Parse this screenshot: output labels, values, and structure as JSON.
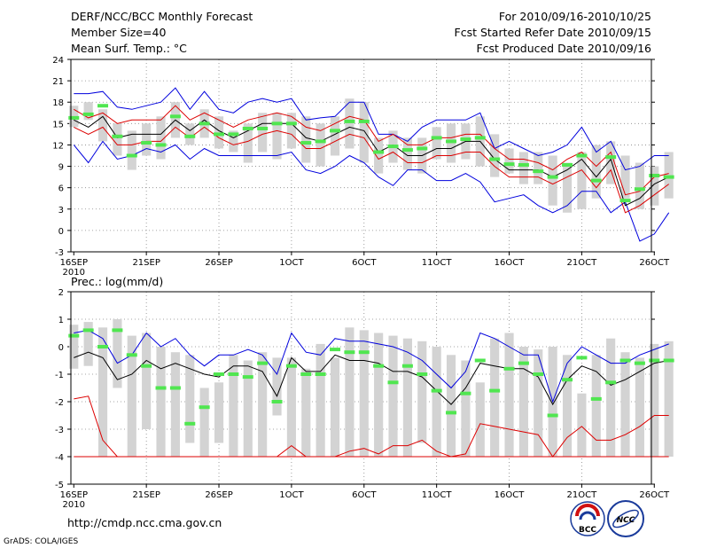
{
  "header": {
    "title": "DERF/NCC/BCC Monthly Forecast",
    "member_size": "Member Size=40",
    "variable": "Mean Surf. Temp.: °C",
    "period": "For 2010/09/16-2010/10/25",
    "refer_date": "Fcst Started Refer Date 2010/09/15",
    "produced_date": "Fcst Produced Date 2010/09/16"
  },
  "footer": {
    "url": "http://cmdp.ncc.cma.gov.cn",
    "credit": "GrADS: COLA/IGES",
    "logo_bcc": "BCC",
    "logo_ncc": "NCC"
  },
  "colors": {
    "box": "#d3d3d3",
    "median": "#50e650",
    "mean": "#000000",
    "outer": "#0000dd",
    "inner": "#dd0000",
    "grid": "#888888"
  },
  "chart_data": [
    {
      "type": "box-ensemble",
      "ylabel": "Mean Surf. Temp.: °C",
      "x_days": 40,
      "xticks": [
        {
          "day": 1,
          "label": "16SEP",
          "sub": "2010"
        },
        {
          "day": 6,
          "label": "21SEP"
        },
        {
          "day": 11,
          "label": "26SEP"
        },
        {
          "day": 16,
          "label": "1OCT"
        },
        {
          "day": 21,
          "label": "6OCT"
        },
        {
          "day": 26,
          "label": "11OCT"
        },
        {
          "day": 31,
          "label": "16OCT"
        },
        {
          "day": 36,
          "label": "21OCT"
        },
        {
          "day": 41,
          "label": "26OCT"
        }
      ],
      "ylim": [
        -3,
        24
      ],
      "yticks": [
        -3,
        0,
        3,
        6,
        9,
        12,
        15,
        18,
        21,
        24
      ],
      "box_low": [
        14.5,
        15.5,
        12.5,
        10.5,
        8.5,
        10.5,
        10.0,
        13.0,
        12.0,
        13.0,
        11.5,
        11.0,
        9.5,
        11.0,
        10.0,
        11.5,
        9.5,
        9.0,
        10.5,
        11.5,
        9.5,
        8.0,
        9.5,
        8.5,
        8.0,
        10.0,
        9.5,
        10.0,
        9.0,
        7.5,
        8.0,
        6.5,
        6.5,
        3.5,
        2.5,
        3.0,
        4.5,
        6.5,
        4.5,
        3.0,
        3.5,
        4.5
      ],
      "box_high": [
        17.5,
        18.0,
        17.0,
        15.0,
        14.0,
        15.0,
        16.0,
        18.0,
        15.0,
        17.0,
        16.0,
        14.0,
        15.0,
        16.5,
        16.5,
        16.5,
        16.0,
        15.0,
        16.0,
        18.5,
        18.0,
        13.0,
        14.0,
        13.0,
        13.0,
        14.5,
        15.0,
        15.0,
        16.0,
        13.5,
        11.5,
        11.0,
        11.0,
        10.5,
        9.5,
        11.0,
        12.0,
        12.5,
        10.5,
        9.5,
        9.0,
        11.0
      ],
      "median": [
        15.8,
        16.3,
        17.5,
        13.2,
        10.5,
        12.3,
        12.0,
        16.0,
        13.2,
        15.0,
        13.5,
        13.5,
        14.3,
        14.3,
        15.0,
        15.0,
        12.3,
        12.5,
        14.0,
        15.3,
        15.3,
        11.0,
        11.8,
        11.3,
        11.5,
        13.0,
        12.5,
        12.8,
        13.0,
        10.0,
        9.3,
        9.2,
        8.3,
        7.5,
        9.2,
        10.5,
        7.0,
        10.3,
        4.2,
        5.8,
        7.7,
        7.5
      ],
      "mean": [
        15.5,
        14.5,
        16.0,
        13.0,
        13.5,
        13.5,
        13.5,
        15.5,
        14.0,
        15.5,
        14.0,
        13.0,
        14.0,
        15.0,
        15.0,
        15.0,
        13.0,
        12.5,
        13.5,
        14.5,
        14.0,
        11.0,
        12.0,
        10.5,
        10.5,
        11.5,
        11.5,
        12.5,
        12.5,
        10.0,
        8.5,
        8.5,
        8.5,
        7.5,
        8.5,
        10.0,
        7.5,
        10.0,
        3.5,
        4.5,
        6.5,
        7.5
      ],
      "upper_outer": [
        19.2,
        19.2,
        19.5,
        17.3,
        17.0,
        17.5,
        18.0,
        20.0,
        17.0,
        19.5,
        17.0,
        16.5,
        18.0,
        18.5,
        18.0,
        18.5,
        15.5,
        15.8,
        16.0,
        18.0,
        18.0,
        13.5,
        13.5,
        12.5,
        14.5,
        15.5,
        15.5,
        15.5,
        16.5,
        11.5,
        12.5,
        11.5,
        10.5,
        11.0,
        12.0,
        14.5,
        11.0,
        12.5,
        8.5,
        9.0,
        10.5,
        10.5
      ],
      "upper_inner": [
        17.0,
        15.8,
        16.5,
        15.0,
        15.5,
        15.5,
        15.5,
        17.5,
        15.5,
        16.5,
        15.5,
        14.5,
        15.5,
        16.0,
        16.5,
        16.0,
        14.5,
        14.0,
        15.0,
        16.0,
        15.5,
        12.5,
        13.5,
        12.0,
        12.0,
        13.0,
        13.0,
        13.5,
        13.5,
        11.5,
        10.0,
        10.0,
        9.5,
        8.5,
        10.0,
        11.0,
        9.0,
        11.0,
        5.0,
        5.5,
        7.5,
        8.0
      ],
      "lower_inner": [
        14.5,
        13.5,
        14.5,
        12.0,
        12.0,
        12.5,
        12.5,
        14.5,
        13.0,
        14.5,
        13.0,
        12.0,
        12.5,
        13.5,
        14.0,
        13.5,
        11.5,
        11.5,
        12.5,
        13.5,
        13.0,
        10.0,
        11.0,
        9.5,
        9.5,
        10.5,
        10.5,
        11.0,
        11.0,
        9.0,
        7.5,
        7.5,
        7.5,
        6.5,
        7.5,
        8.5,
        6.0,
        8.5,
        2.5,
        3.5,
        5.0,
        6.5
      ],
      "lower_outer": [
        12.0,
        9.5,
        12.5,
        10.0,
        10.5,
        11.5,
        11.0,
        12.0,
        10.0,
        11.5,
        10.5,
        10.5,
        10.5,
        10.5,
        10.5,
        11.0,
        8.5,
        8.0,
        9.0,
        10.5,
        9.5,
        7.5,
        6.3,
        8.5,
        8.5,
        7.0,
        7.0,
        8.0,
        6.8,
        4.0,
        4.5,
        5.0,
        3.5,
        2.5,
        3.5,
        5.5,
        5.5,
        2.5,
        4.0,
        -1.5,
        -0.5,
        2.5
      ]
    },
    {
      "type": "box-ensemble",
      "ylabel": "Prec.: log(mm/d)",
      "x_days": 40,
      "xticks": [
        {
          "day": 1,
          "label": "16SEP",
          "sub": "2010"
        },
        {
          "day": 6,
          "label": "21SEP"
        },
        {
          "day": 11,
          "label": "26SEP"
        },
        {
          "day": 16,
          "label": "1OCT"
        },
        {
          "day": 21,
          "label": "6OCT"
        },
        {
          "day": 26,
          "label": "11OCT"
        },
        {
          "day": 31,
          "label": "16OCT"
        },
        {
          "day": 36,
          "label": "21OCT"
        },
        {
          "day": 41,
          "label": "26OCT"
        }
      ],
      "ylim": [
        -5,
        2
      ],
      "yticks": [
        -5,
        -4,
        -3,
        -2,
        -1,
        0,
        1,
        2
      ],
      "box_low": [
        -0.8,
        -0.7,
        -4.0,
        -1.5,
        -4.0,
        -3.0,
        -4.0,
        -4.0,
        -3.5,
        -4.0,
        -3.5,
        -4.0,
        -4.0,
        -4.0,
        -2.5,
        -4.0,
        -4.0,
        -4.0,
        -4.0,
        -4.0,
        -4.0,
        -4.0,
        -4.0,
        -4.0,
        -3.5,
        -4.0,
        -4.0,
        -4.0,
        -4.0,
        -4.0,
        -4.0,
        -4.0,
        -4.0,
        -4.0,
        -4.0,
        -4.0,
        -4.0,
        -4.0,
        -4.0,
        -4.0,
        -4.0,
        -4.0
      ],
      "box_high": [
        0.8,
        0.9,
        0.7,
        1.0,
        0.4,
        0.5,
        0.0,
        -0.2,
        -0.3,
        -1.5,
        -1.3,
        -0.3,
        -0.5,
        -0.2,
        -0.4,
        -0.4,
        -0.8,
        0.1,
        -0.4,
        0.7,
        0.6,
        0.5,
        0.4,
        0.3,
        0.2,
        0.0,
        -0.3,
        -0.5,
        -1.3,
        0.3,
        0.5,
        0.0,
        -0.1,
        0.0,
        -0.3,
        -1.7,
        -0.3,
        0.3,
        -0.2,
        -0.4,
        0.1,
        0.2
      ],
      "median": [
        0.4,
        0.6,
        0.0,
        0.6,
        -0.3,
        -0.7,
        -1.5,
        -1.5,
        -2.8,
        -2.2,
        -1.0,
        -1.0,
        -1.1,
        -0.6,
        -2.0,
        -0.7,
        -1.0,
        -1.0,
        -0.1,
        -0.2,
        -0.2,
        -0.7,
        -1.3,
        -0.7,
        -1.0,
        -1.6,
        -2.4,
        -1.7,
        -0.5,
        -1.6,
        -0.8,
        -0.6,
        -1.0,
        -2.5,
        -1.2,
        -0.4,
        -1.9,
        -1.3,
        -0.5,
        -0.6,
        -0.5,
        -0.5
      ],
      "mean": [
        -0.4,
        -0.2,
        -0.4,
        -1.2,
        -1.0,
        -0.5,
        -0.8,
        -0.6,
        -0.8,
        -1.0,
        -1.1,
        -0.7,
        -0.7,
        -0.9,
        -1.8,
        -0.4,
        -0.9,
        -0.9,
        -0.3,
        -0.5,
        -0.5,
        -0.6,
        -0.9,
        -0.9,
        -1.1,
        -1.6,
        -2.1,
        -1.5,
        -0.6,
        -0.7,
        -0.8,
        -0.8,
        -1.1,
        -2.1,
        -1.2,
        -0.7,
        -0.9,
        -1.4,
        -1.2,
        -0.9,
        -0.6,
        -0.5
      ],
      "upper_outer": [
        0.5,
        0.6,
        0.3,
        -0.6,
        -0.3,
        0.5,
        0.0,
        0.3,
        -0.3,
        -0.7,
        -0.3,
        -0.3,
        -0.1,
        -0.3,
        -1.0,
        0.5,
        -0.2,
        -0.3,
        0.3,
        0.2,
        0.2,
        0.1,
        0.0,
        -0.2,
        -0.5,
        -1.0,
        -1.5,
        -0.9,
        0.5,
        0.3,
        0.0,
        -0.3,
        -0.3,
        -2.0,
        -0.6,
        0.0,
        -0.3,
        -0.6,
        -0.6,
        -0.3,
        -0.1,
        0.1
      ],
      "lower_outer": [
        -1.9,
        -1.8,
        -3.4,
        -4.0,
        -4.0,
        -4.0,
        -4.0,
        -4.0,
        -4.0,
        -4.0,
        -4.0,
        -4.0,
        -4.0,
        -4.0,
        -4.0,
        -3.6,
        -4.0,
        -4.0,
        -4.0,
        -3.8,
        -3.7,
        -3.9,
        -3.6,
        -3.6,
        -3.4,
        -3.8,
        -4.0,
        -3.9,
        -2.8,
        -2.9,
        -3.0,
        -3.1,
        -3.2,
        -4.0,
        -3.3,
        -2.9,
        -3.4,
        -3.4,
        -3.2,
        -2.9,
        -2.5,
        -2.5
      ],
      "floor": -4.0
    }
  ]
}
